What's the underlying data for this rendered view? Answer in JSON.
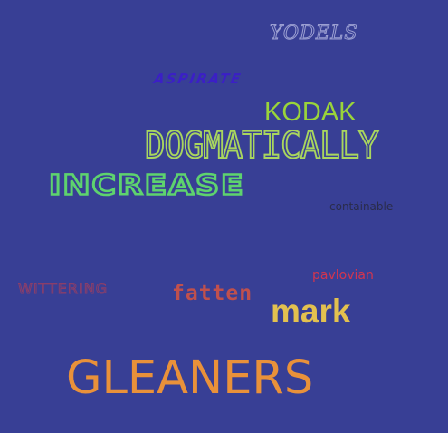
{
  "words": {
    "yodels": "YODELS",
    "aspirate": "ASPIRATE",
    "kodak": "KODAK",
    "dogmatically": "DOGMATICALLY",
    "increase": "INCREASE",
    "containable": "containable",
    "pavlovian": "pavlovian",
    "wittering": "WITTERING",
    "fatten": "fatten",
    "mark": "mark",
    "gleaners": "GLEANERS"
  },
  "colors": {
    "background": "#383f95",
    "yodels": "#9b9fd2",
    "aspirate": "#3b1fc6",
    "kodak": "#9ad43a",
    "dogmatically": "#a9d65e",
    "increase": "#5ed36e",
    "containable": "#2a2c4a",
    "pavlovian": "#d2354f",
    "wittering": "#8a3e6a",
    "fatten": "#c0504d",
    "mark": "#e3c14f",
    "gleaners": "#e9913a"
  }
}
